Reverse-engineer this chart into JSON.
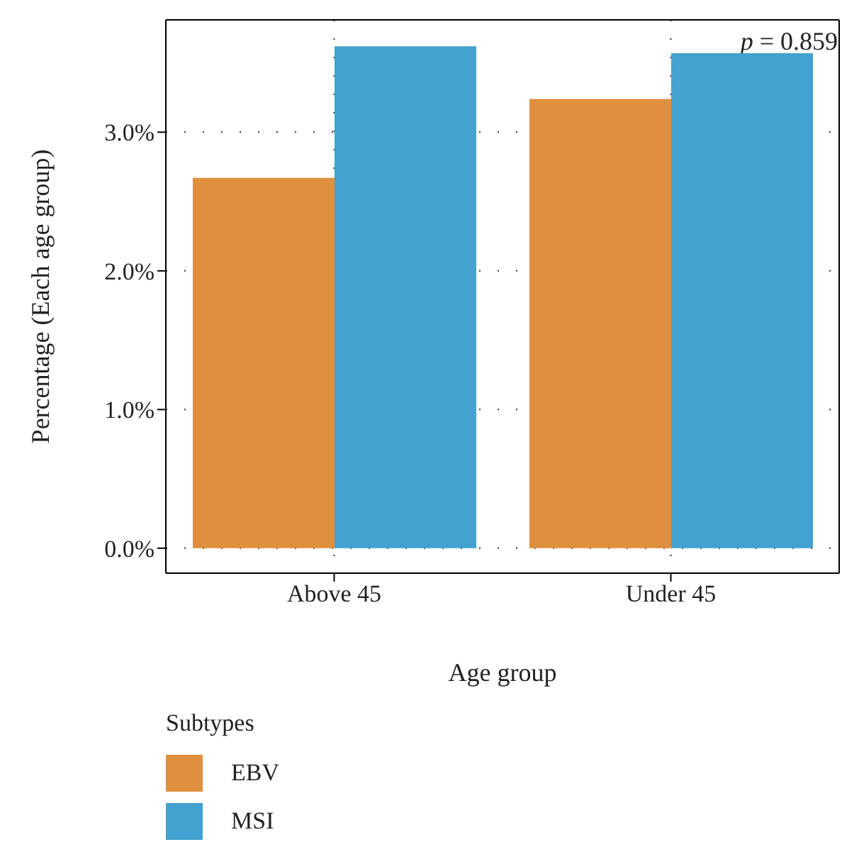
{
  "chart_data": {
    "type": "bar",
    "xlabel": "Age group",
    "ylabel": "Percentage (Each age group)",
    "legend_title": "Subtypes",
    "categories": [
      "Above 45",
      "Under 45"
    ],
    "series": [
      {
        "name": "EBV",
        "color": "#e08f3e",
        "values": [
          2.67,
          3.24
        ]
      },
      {
        "name": "MSI",
        "color": "#43a2cf",
        "values": [
          3.62,
          3.57
        ]
      }
    ],
    "ylim": [
      -0.18,
      3.81
    ],
    "yticks": [
      {
        "value": 0,
        "label": "0.0%"
      },
      {
        "value": 1,
        "label": "1.0%"
      },
      {
        "value": 2,
        "label": "2.0%"
      },
      {
        "value": 3,
        "label": "3.0%"
      }
    ],
    "grid": true,
    "legend": "bottom left",
    "annotations": [
      "p = 0.859"
    ]
  }
}
